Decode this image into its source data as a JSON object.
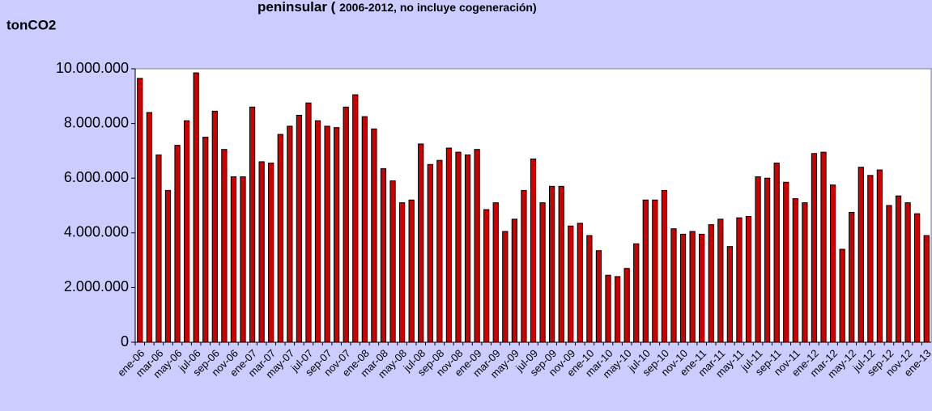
{
  "chart_data": {
    "type": "bar",
    "title": "peninsular (",
    "subtitle": "2006-2012, no incluye cogeneración)",
    "y_label": "tonCO2",
    "color": "#cc0000",
    "grid": false,
    "categories": [
      "ene-06",
      null,
      "mar-06",
      null,
      "may-06",
      null,
      "jul-06",
      null,
      "sep-06",
      null,
      "nov-06",
      null,
      "ene-07",
      null,
      "mar-07",
      null,
      "may-07",
      null,
      "jul-07",
      null,
      "sep-07",
      null,
      "nov-07",
      null,
      "ene-08",
      null,
      "mar-08",
      null,
      "may-08",
      null,
      "jul-08",
      null,
      "sep-08",
      null,
      "nov-08",
      null,
      "ene-09",
      null,
      "mar-09",
      null,
      "may-09",
      null,
      "jul-09",
      null,
      "sep-09",
      null,
      "nov-09",
      null,
      "ene-10",
      null,
      "mar-10",
      null,
      "may-10",
      null,
      "jul-10",
      null,
      "sep-10",
      null,
      "nov-10",
      null,
      "ene-11",
      null,
      "mar-11",
      null,
      "may-11",
      null,
      "jul-11",
      null,
      "sep-11",
      null,
      "nov-11",
      null,
      "ene-12",
      null,
      "mar-12",
      null,
      "may-12",
      null,
      "jul-12",
      null,
      "sep-12",
      null,
      "nov-12",
      null,
      "ene-13"
    ],
    "values": [
      9650000,
      8400000,
      6850000,
      5550000,
      7200000,
      8100000,
      9850000,
      7500000,
      8450000,
      7050000,
      6050000,
      6050000,
      8600000,
      6600000,
      6550000,
      7600000,
      7900000,
      8300000,
      8750000,
      8100000,
      7900000,
      7850000,
      8600000,
      9050000,
      8250000,
      7800000,
      6350000,
      5900000,
      5100000,
      5200000,
      7250000,
      6500000,
      6650000,
      7100000,
      6950000,
      6850000,
      7050000,
      4850000,
      5100000,
      4050000,
      4500000,
      5550000,
      6700000,
      5100000,
      5700000,
      5700000,
      4250000,
      4350000,
      3900000,
      3350000,
      2450000,
      2400000,
      2700000,
      3600000,
      5200000,
      5200000,
      5550000,
      4150000,
      3950000,
      4050000,
      3950000,
      4300000,
      4500000,
      3500000,
      4550000,
      4600000,
      6050000,
      6000000,
      6550000,
      5850000,
      5250000,
      5100000,
      6900000,
      6950000,
      5750000,
      3400000,
      4750000,
      6400000,
      6100000,
      6300000,
      5000000,
      5350000,
      5100000,
      4700000,
      3900000
    ],
    "ylim": [
      0,
      10000000
    ],
    "yticks": [
      0,
      {
        "value": 2000000,
        "label": "2.000.000"
      },
      {
        "value": 4000000,
        "label": "4.000.000"
      },
      {
        "value": 6000000,
        "label": "6.000.000"
      },
      {
        "value": 8000000,
        "label": "8.000.000"
      },
      {
        "value": 10000000,
        "label": "10.000.000"
      }
    ]
  }
}
